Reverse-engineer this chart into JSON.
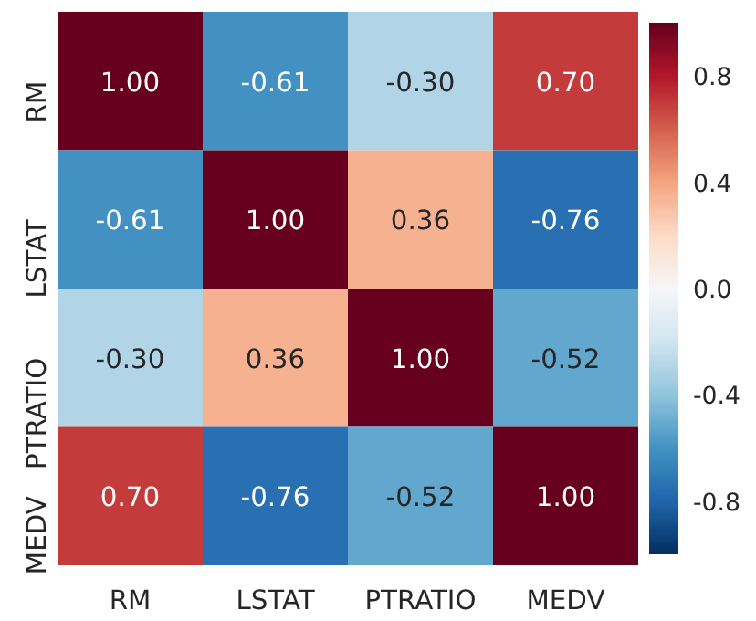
{
  "chart_data": {
    "type": "heatmap",
    "categories": [
      "RM",
      "LSTAT",
      "PTRATIO",
      "MEDV"
    ],
    "y_categories": [
      "RM",
      "LSTAT",
      "PTRATIO",
      "MEDV"
    ],
    "cells": [
      [
        1.0,
        -0.61,
        -0.3,
        0.7
      ],
      [
        -0.61,
        1.0,
        0.36,
        -0.76
      ],
      [
        -0.3,
        0.36,
        1.0,
        -0.52
      ],
      [
        0.7,
        -0.76,
        -0.52,
        1.0
      ]
    ],
    "cell_labels": [
      [
        "1.00",
        "-0.61",
        "-0.30",
        "0.70"
      ],
      [
        "-0.61",
        "1.00",
        "0.36",
        "-0.76"
      ],
      [
        "-0.30",
        "0.36",
        "1.00",
        "-0.52"
      ],
      [
        "0.70",
        "-0.76",
        "-0.52",
        "1.00"
      ]
    ],
    "clim": [
      -1,
      1
    ],
    "cticks": [
      -0.8,
      -0.4,
      {
        "value": 0,
        "label": "0.0"
      },
      0.4,
      0.8
    ]
  }
}
